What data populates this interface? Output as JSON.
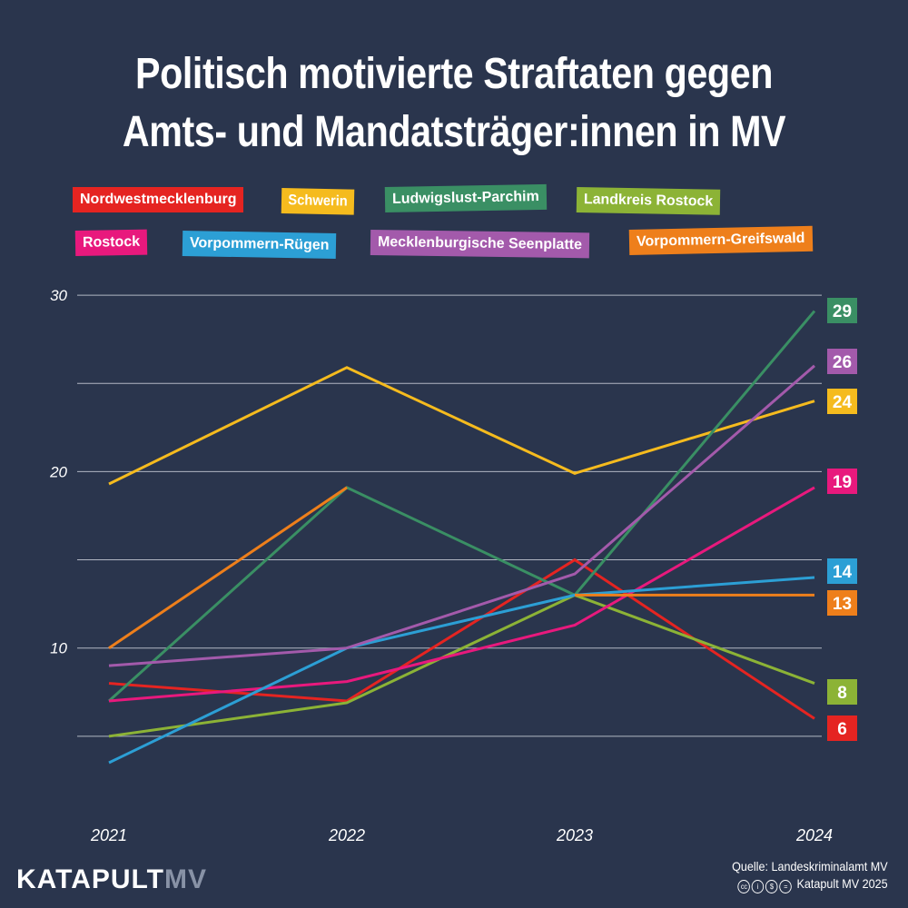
{
  "title_lines": [
    "Politisch motivierte Straftaten gegen",
    "Amts- und Mandatsträger:innen in MV"
  ],
  "chart_data": {
    "type": "line",
    "x": [
      "2021",
      "2022",
      "2023",
      "2024"
    ],
    "ylim": [
      0,
      30
    ],
    "yticks": [
      10,
      20,
      30
    ],
    "grid": true,
    "legend_position": "top",
    "series": [
      {
        "name": "Nordwestmecklenburg",
        "color": "#e52421",
        "values": [
          8,
          7,
          15,
          6
        ],
        "end_label": "6"
      },
      {
        "name": "Schwerin",
        "color": "#f5bb1e",
        "values": [
          19.3,
          25.9,
          19.9,
          24
        ],
        "end_label": "24"
      },
      {
        "name": "Ludwigslust-Parchim",
        "color": "#3a8f64",
        "values": [
          7,
          19.1,
          13,
          29.1
        ],
        "end_label": "29"
      },
      {
        "name": "Landkreis Rostock",
        "color": "#8cb336",
        "values": [
          5,
          6.9,
          13,
          8
        ],
        "end_label": "8"
      },
      {
        "name": "Rostock",
        "color": "#e8197d",
        "values": [
          7,
          8.1,
          11.3,
          19.1
        ],
        "end_label": "19"
      },
      {
        "name": "Vorpommern-Rügen",
        "color": "#2c9fd5",
        "values": [
          3.5,
          10,
          13,
          14
        ],
        "end_label": "14"
      },
      {
        "name": "Mecklenburgische Seenplatte",
        "color": "#a35aab",
        "values": [
          9,
          10,
          14.2,
          26
        ],
        "end_label": "26"
      },
      {
        "name": "Vorpommern-Greifswald",
        "color": "#ee7f1b",
        "values": [
          10,
          19.1,
          null,
          13
        ],
        "end_label": "13"
      }
    ]
  },
  "extra_segments": [
    {
      "series": "Vorpommern-Greifswald",
      "from": [
        "2023",
        13
      ],
      "to": [
        "2024",
        13
      ]
    }
  ],
  "footer": {
    "brand_main": "KATAPULT",
    "brand_sub": "MV",
    "source": "Quelle: Landeskriminalamt MV",
    "license": "Katapult MV 2025",
    "license_icons": [
      "cc-icon",
      "by-icon",
      "nc-icon",
      "nd-icon"
    ]
  }
}
